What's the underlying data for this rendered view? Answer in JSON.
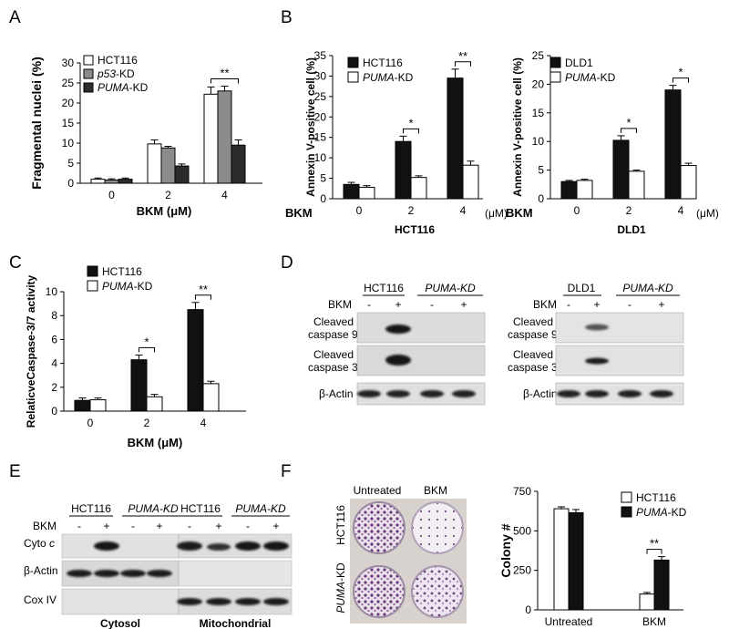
{
  "panel_letters": [
    "A",
    "B",
    "C",
    "D",
    "E",
    "F"
  ],
  "stars": {
    "one": "*",
    "two": "**"
  },
  "chart_data": [
    {
      "id": "A",
      "type": "bar",
      "ylabel": "Fragmental nuclei (%)",
      "xlabel_main": "BKM",
      "xlabel_unit": "(μM)",
      "categories": [
        "0",
        "2",
        "4"
      ],
      "ylim": [
        0,
        30
      ],
      "yticks": [
        0,
        5,
        10,
        15,
        20,
        25,
        30
      ],
      "series": [
        {
          "name": "HCT116",
          "values": [
            1.0,
            9.8,
            22.2
          ],
          "errors": [
            0.3,
            1.0,
            1.8
          ],
          "color": "#ffffff"
        },
        {
          "name": "p53-KD",
          "values": [
            0.8,
            8.8,
            23.0
          ],
          "errors": [
            0.3,
            0.4,
            1.2
          ],
          "color": "#8c8c8c"
        },
        {
          "name": "PUMA-KD",
          "values": [
            1.0,
            4.3,
            9.5
          ],
          "errors": [
            0.3,
            0.5,
            1.3
          ],
          "color": "#2b2b2b"
        }
      ],
      "significance": [
        {
          "category": "4",
          "label": "**"
        }
      ]
    },
    {
      "id": "B1",
      "type": "bar",
      "ylabel": "Annexin V-positive cell (%)",
      "row_label": "BKM",
      "unit_label": "(μM)",
      "group_label": "HCT116",
      "categories": [
        "0",
        "2",
        "4"
      ],
      "ylim": [
        0,
        35
      ],
      "yticks": [
        0,
        5,
        10,
        15,
        20,
        25,
        30,
        35
      ],
      "series": [
        {
          "name": "HCT116",
          "values": [
            3.5,
            14.0,
            29.5
          ],
          "errors": [
            0.5,
            1.3,
            2.2
          ],
          "color": "#111111"
        },
        {
          "name": "PUMA-KD",
          "values": [
            2.8,
            5.2,
            8.2
          ],
          "errors": [
            0.4,
            0.4,
            1.0
          ],
          "color": "#ffffff"
        }
      ],
      "significance": [
        {
          "category": "2",
          "label": "*"
        },
        {
          "category": "4",
          "label": "**"
        }
      ]
    },
    {
      "id": "B2",
      "type": "bar",
      "ylabel": "Annexin V-positive cell (%)",
      "row_label": "BKM",
      "unit_label": "(μM)",
      "group_label": "DLD1",
      "categories": [
        "0",
        "2",
        "4"
      ],
      "ylim": [
        0,
        25
      ],
      "yticks": [
        0,
        5,
        10,
        15,
        20,
        25
      ],
      "series": [
        {
          "name": "DLD1",
          "values": [
            3.0,
            10.2,
            19.0
          ],
          "errors": [
            0.2,
            0.8,
            0.8
          ],
          "color": "#111111"
        },
        {
          "name": "PUMA-KD",
          "values": [
            3.2,
            4.8,
            5.8
          ],
          "errors": [
            0.2,
            0.2,
            0.4
          ],
          "color": "#ffffff"
        }
      ],
      "significance": [
        {
          "category": "2",
          "label": "*"
        },
        {
          "category": "4",
          "label": "*"
        }
      ]
    },
    {
      "id": "C",
      "type": "bar",
      "ylabel": "RelaticveCaspase-3/7 activity",
      "xlabel_main": "BKM",
      "xlabel_unit": "(μM)",
      "categories": [
        "0",
        "2",
        "4"
      ],
      "ylim": [
        0,
        10
      ],
      "yticks": [
        0,
        2,
        4,
        6,
        8,
        10
      ],
      "series": [
        {
          "name": "HCT116",
          "values": [
            0.9,
            4.3,
            8.5
          ],
          "errors": [
            0.2,
            0.4,
            0.6
          ],
          "color": "#111111"
        },
        {
          "name": "PUMA-KD",
          "values": [
            0.95,
            1.2,
            2.3
          ],
          "errors": [
            0.15,
            0.2,
            0.2
          ],
          "color": "#ffffff"
        }
      ],
      "significance": [
        {
          "category": "2",
          "label": "*"
        },
        {
          "category": "4",
          "label": "**"
        }
      ]
    },
    {
      "id": "F",
      "type": "bar",
      "ylabel": "Colony #",
      "categories": [
        "Untreated",
        "BKM"
      ],
      "ylim": [
        0,
        750
      ],
      "yticks": [
        0,
        250,
        500,
        750
      ],
      "series": [
        {
          "name": "HCT116",
          "values": [
            640,
            100
          ],
          "errors": [
            12,
            10
          ],
          "color": "#ffffff"
        },
        {
          "name": "PUMA-KD",
          "values": [
            615,
            315
          ],
          "errors": [
            20,
            22
          ],
          "color": "#111111"
        }
      ],
      "significance": [
        {
          "category": "BKM",
          "label": "**"
        }
      ]
    }
  ],
  "blot_D": {
    "left": {
      "group1": "HCT116",
      "group2": "PUMA-KD"
    },
    "right": {
      "group1": "DLD1",
      "group2": "PUMA-KD"
    },
    "row_bkm": "BKM",
    "lane_signs": [
      "-",
      "+",
      "-",
      "+"
    ],
    "rows": [
      {
        "line1": "Cleaved",
        "line2": "caspase 9"
      },
      {
        "line1": "Cleaved",
        "line2": "caspase 3"
      },
      {
        "line1": "β-Actin",
        "line2": ""
      }
    ]
  },
  "blot_E": {
    "groups": [
      "HCT116",
      "PUMA-KD",
      "HCT116",
      "PUMA-KD"
    ],
    "row_bkm": "BKM",
    "lane_signs": [
      "-",
      "+",
      "-",
      "+",
      "-",
      "+",
      "-",
      "+"
    ],
    "rows": [
      "Cyto c",
      "β-Actin",
      "Cox IV"
    ],
    "fraction_labels": [
      "Cytosol",
      "Mitochondrial"
    ]
  },
  "colony_F": {
    "col_labels": [
      "Untreated",
      "BKM"
    ],
    "row_labels": [
      "HCT116",
      "PUMA-KD"
    ]
  }
}
